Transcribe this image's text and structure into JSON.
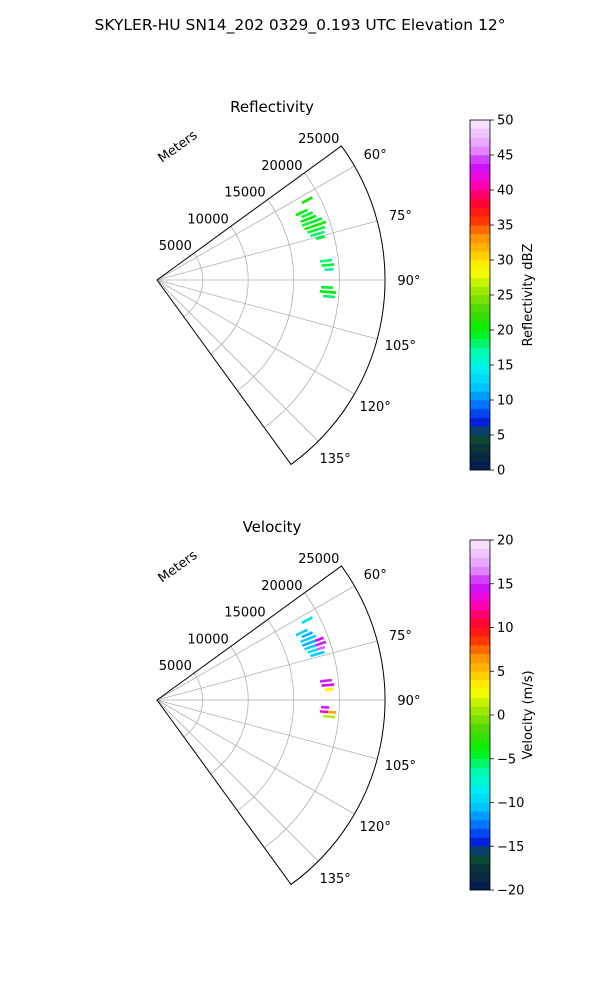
{
  "figure": {
    "title": "SKYLER-HU  SN14_202  0329_0.193 UTC Elevation 12°"
  },
  "chart_data": [
    {
      "type": "heatmap",
      "projection": "polar-sector",
      "title": "Reflectivity",
      "radial_axis_label": "Meters",
      "radial_ticks": [
        5000,
        10000,
        15000,
        20000,
        25000
      ],
      "radial_tick_labels": [
        "5000",
        "10000",
        "15000",
        "20000",
        "25000"
      ],
      "radial_range": [
        0,
        25000
      ],
      "azimuth_range_deg": [
        54,
        144
      ],
      "azimuth_ticks_deg": [
        60,
        75,
        90,
        105,
        120,
        135
      ],
      "azimuth_tick_labels": [
        "60°",
        "75°",
        "90°",
        "105°",
        "120°",
        "135°"
      ],
      "grid": true,
      "colorbar": {
        "label": "Reflectivity dBZ",
        "min": 0,
        "max": 50,
        "ticks": [
          0,
          5,
          10,
          15,
          20,
          25,
          30,
          35,
          40,
          45,
          50
        ],
        "tick_labels": [
          "0",
          "5",
          "10",
          "15",
          "20",
          "25",
          "30",
          "35",
          "40",
          "45",
          "50"
        ]
      },
      "echo_cells": [
        {
          "az": 62,
          "r0": 18000,
          "r1": 19300,
          "value": 21
        },
        {
          "az": 65,
          "r0": 16800,
          "r1": 18200,
          "value": 20
        },
        {
          "az": 66.5,
          "r0": 17300,
          "r1": 18600,
          "value": 19
        },
        {
          "az": 68,
          "r0": 17000,
          "r1": 18800,
          "value": 20
        },
        {
          "az": 69.5,
          "r0": 17000,
          "r1": 19300,
          "value": 19
        },
        {
          "az": 71,
          "r0": 17100,
          "r1": 19600,
          "value": 21
        },
        {
          "az": 72.5,
          "r0": 17300,
          "r1": 19300,
          "value": 19
        },
        {
          "az": 74,
          "r0": 17500,
          "r1": 19100,
          "value": 18
        },
        {
          "az": 75.5,
          "r0": 18000,
          "r1": 19000,
          "value": 19
        },
        {
          "az": 83.5,
          "r0": 18000,
          "r1": 19300,
          "value": 18
        },
        {
          "az": 85,
          "r0": 18100,
          "r1": 19500,
          "value": 19
        },
        {
          "az": 86.5,
          "r0": 18400,
          "r1": 19400,
          "value": 17
        },
        {
          "az": 92.5,
          "r0": 18000,
          "r1": 19300,
          "value": 19
        },
        {
          "az": 94,
          "r0": 17900,
          "r1": 19700,
          "value": 20
        },
        {
          "az": 95.5,
          "r0": 18300,
          "r1": 19600,
          "value": 18
        }
      ]
    },
    {
      "type": "heatmap",
      "projection": "polar-sector",
      "title": "Velocity",
      "radial_axis_label": "Meters",
      "radial_ticks": [
        5000,
        10000,
        15000,
        20000,
        25000
      ],
      "radial_tick_labels": [
        "5000",
        "10000",
        "15000",
        "20000",
        "25000"
      ],
      "radial_range": [
        0,
        25000
      ],
      "azimuth_range_deg": [
        54,
        144
      ],
      "azimuth_ticks_deg": [
        60,
        75,
        90,
        105,
        120,
        135
      ],
      "azimuth_tick_labels": [
        "60°",
        "75°",
        "90°",
        "105°",
        "120°",
        "135°"
      ],
      "grid": true,
      "colorbar": {
        "label": "Velocity (m/s)",
        "min": -20,
        "max": 20,
        "ticks": [
          -20,
          -15,
          -10,
          -5,
          0,
          5,
          10,
          15,
          20
        ],
        "tick_labels": [
          "−20",
          "−15",
          "−10",
          "−5",
          "0",
          "5",
          "10",
          "15",
          "20"
        ]
      },
      "echo_cells": [
        {
          "az": 62,
          "r0": 18000,
          "r1": 19300,
          "value": -9
        },
        {
          "az": 65,
          "r0": 16800,
          "r1": 18200,
          "value": -10
        },
        {
          "az": 66.5,
          "r0": 17300,
          "r1": 18600,
          "value": -11
        },
        {
          "az": 68,
          "r0": 17000,
          "r1": 18800,
          "value": -10
        },
        {
          "az": 69.5,
          "r0": 17000,
          "r1": 18500,
          "value": -11
        },
        {
          "az": 69.5,
          "r0": 18500,
          "r1": 19500,
          "value": 14
        },
        {
          "az": 71,
          "r0": 17100,
          "r1": 18400,
          "value": -10
        },
        {
          "az": 71,
          "r0": 18400,
          "r1": 19600,
          "value": 15
        },
        {
          "az": 72.5,
          "r0": 17300,
          "r1": 18400,
          "value": -9
        },
        {
          "az": 72.5,
          "r0": 18400,
          "r1": 19300,
          "value": 16
        },
        {
          "az": 74,
          "r0": 17500,
          "r1": 19100,
          "value": -10
        },
        {
          "az": 83.5,
          "r0": 18000,
          "r1": 19300,
          "value": 15
        },
        {
          "az": 85,
          "r0": 18100,
          "r1": 19500,
          "value": 14
        },
        {
          "az": 86.5,
          "r0": 18400,
          "r1": 19400,
          "value": 3
        },
        {
          "az": 92.5,
          "r0": 18000,
          "r1": 18900,
          "value": 15
        },
        {
          "az": 94,
          "r0": 17900,
          "r1": 18800,
          "value": 13
        },
        {
          "az": 94,
          "r0": 18800,
          "r1": 19700,
          "value": 6
        },
        {
          "az": 95.5,
          "r0": 18300,
          "r1": 19600,
          "value": 1
        }
      ]
    }
  ]
}
